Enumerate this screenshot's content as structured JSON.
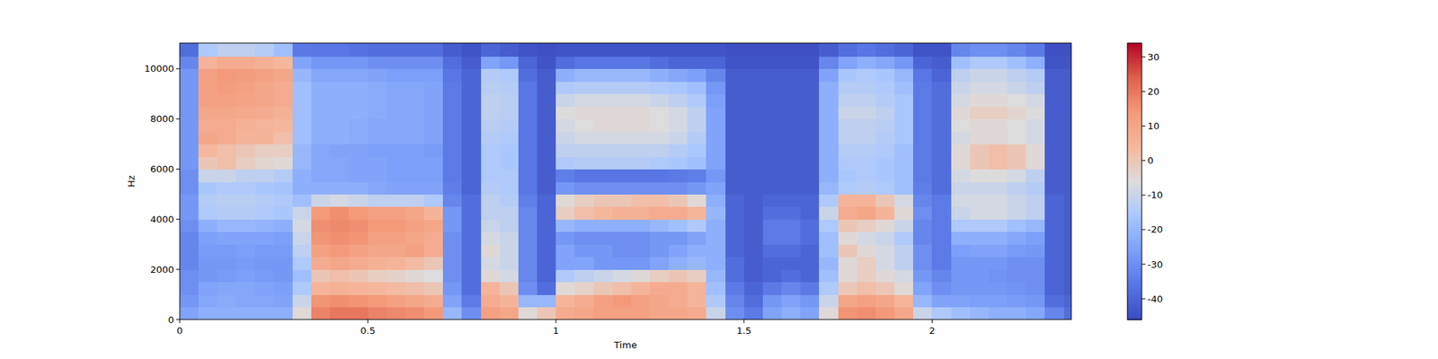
{
  "chart_data": {
    "type": "heatmap",
    "xlabel": "Time",
    "ylabel": "Hz",
    "x_bins": [
      0,
      0.05,
      0.1,
      0.15,
      0.2,
      0.25,
      0.3,
      0.35,
      0.4,
      0.45,
      0.5,
      0.55,
      0.6,
      0.65,
      0.7,
      0.75,
      0.8,
      0.85,
      0.9,
      0.95,
      1,
      1.05,
      1.1,
      1.15,
      1.2,
      1.25,
      1.3,
      1.35,
      1.4,
      1.45,
      1.5,
      1.55,
      1.6,
      1.65,
      1.7,
      1.75,
      1.8,
      1.85,
      1.9,
      1.95,
      2,
      2.05,
      2.1,
      2.15,
      2.2,
      2.25,
      2.3,
      2.35,
      2.4
    ],
    "y_bins": [
      0,
      500,
      1000,
      1500,
      2000,
      2500,
      3000,
      3500,
      4000,
      4500,
      5000,
      5500,
      6000,
      6500,
      7000,
      7500,
      8000,
      8500,
      9000,
      9500,
      10000,
      10500,
      11025
    ],
    "values": [
      [
        -25,
        -22,
        -22,
        -22,
        -22,
        -22,
        -5,
        18,
        20,
        20,
        18,
        17,
        16,
        14,
        -20,
        -30,
        12,
        10,
        -5,
        0,
        8,
        10,
        12,
        12,
        12,
        10,
        10,
        8,
        -10,
        -30,
        -35,
        -25,
        -22,
        -25,
        -5,
        15,
        16,
        14,
        10,
        -10,
        -15,
        -18,
        -20,
        -22,
        -22,
        -24,
        -32,
        -38
      ],
      [
        -28,
        -24,
        -23,
        -24,
        -24,
        -25,
        -10,
        15,
        16,
        15,
        14,
        12,
        10,
        8,
        -25,
        -35,
        8,
        5,
        -20,
        -20,
        5,
        8,
        12,
        14,
        12,
        10,
        8,
        5,
        -15,
        -32,
        -38,
        -28,
        -25,
        -28,
        -10,
        10,
        12,
        10,
        5,
        -20,
        -25,
        -25,
        -26,
        -26,
        -27,
        -28,
        -38,
        -40
      ],
      [
        -30,
        -25,
        -24,
        -24,
        -25,
        -26,
        -15,
        5,
        6,
        5,
        4,
        3,
        2,
        0,
        -28,
        -38,
        5,
        0,
        -30,
        -38,
        -5,
        -3,
        0,
        2,
        5,
        8,
        8,
        5,
        -18,
        -35,
        -40,
        -35,
        -32,
        -35,
        -15,
        0,
        2,
        0,
        -5,
        -25,
        -30,
        -28,
        -28,
        -28,
        -29,
        -30,
        -40,
        -42
      ],
      [
        -30,
        -28,
        -27,
        -26,
        -27,
        -28,
        -18,
        0,
        2,
        0,
        -2,
        -3,
        -5,
        -6,
        -30,
        -38,
        -5,
        -8,
        -32,
        -40,
        -15,
        -12,
        -10,
        -8,
        -5,
        -2,
        0,
        -2,
        -20,
        -38,
        -42,
        -40,
        -38,
        -40,
        -18,
        -5,
        -2,
        -5,
        -8,
        -28,
        -32,
        -28,
        -28,
        -29,
        -30,
        -30,
        -40,
        -42
      ],
      [
        -32,
        -28,
        -28,
        -27,
        -28,
        -28,
        -15,
        8,
        10,
        8,
        6,
        5,
        3,
        0,
        -30,
        -38,
        -8,
        -10,
        -32,
        -40,
        -25,
        -25,
        -28,
        -28,
        -28,
        -25,
        -22,
        -20,
        -22,
        -38,
        -42,
        -40,
        -40,
        -40,
        -20,
        -5,
        -2,
        -8,
        -12,
        -30,
        -35,
        -28,
        -28,
        -28,
        -30,
        -30,
        -40,
        -42
      ],
      [
        -32,
        -27,
        -27,
        -26,
        -27,
        -27,
        -12,
        12,
        14,
        12,
        10,
        10,
        12,
        8,
        -30,
        -38,
        -5,
        -10,
        -32,
        -40,
        -25,
        -28,
        -28,
        -30,
        -30,
        -28,
        -25,
        -22,
        -22,
        -40,
        -42,
        -38,
        -38,
        -40,
        -18,
        0,
        -5,
        -8,
        -12,
        -30,
        -35,
        -26,
        -25,
        -25,
        -27,
        -28,
        -40,
        -42
      ],
      [
        -32,
        -26,
        -25,
        -25,
        -25,
        -26,
        -10,
        15,
        16,
        15,
        12,
        12,
        10,
        8,
        -30,
        -38,
        -8,
        -10,
        -32,
        -40,
        -28,
        -30,
        -30,
        -30,
        -30,
        -28,
        -28,
        -25,
        -22,
        -40,
        -42,
        -35,
        -35,
        -38,
        -18,
        -5,
        -8,
        -10,
        -15,
        -32,
        -35,
        -22,
        -22,
        -22,
        -24,
        -26,
        -40,
        -42
      ],
      [
        -30,
        -22,
        -20,
        -20,
        -21,
        -22,
        -8,
        16,
        17,
        16,
        14,
        14,
        12,
        10,
        -28,
        -38,
        -10,
        -12,
        -32,
        -40,
        -20,
        -22,
        -22,
        -22,
        -22,
        -20,
        -18,
        -15,
        -22,
        -40,
        -42,
        -35,
        -35,
        -38,
        -15,
        0,
        -2,
        -5,
        -10,
        -32,
        -35,
        -15,
        -15,
        -15,
        -18,
        -20,
        -40,
        -42
      ],
      [
        -28,
        -15,
        -14,
        -14,
        -15,
        -16,
        -10,
        14,
        16,
        14,
        12,
        12,
        10,
        5,
        -28,
        -38,
        -12,
        -12,
        -32,
        -40,
        -2,
        2,
        4,
        6,
        6,
        8,
        8,
        5,
        -20,
        -40,
        -42,
        -38,
        -38,
        -40,
        -10,
        8,
        10,
        5,
        -5,
        -30,
        -35,
        -10,
        -8,
        -8,
        -10,
        -12,
        -40,
        -42
      ],
      [
        -28,
        -14,
        -13,
        -13,
        -14,
        -15,
        -18,
        -10,
        -8,
        -10,
        -12,
        -12,
        -12,
        -15,
        -32,
        -38,
        -12,
        -14,
        -34,
        -40,
        -5,
        -2,
        0,
        0,
        2,
        2,
        0,
        -5,
        -22,
        -40,
        -42,
        -40,
        -40,
        -40,
        -15,
        5,
        5,
        0,
        -8,
        -32,
        -35,
        -8,
        -8,
        -8,
        -10,
        -12,
        -40,
        -42
      ],
      [
        -30,
        -16,
        -15,
        -15,
        -16,
        -17,
        -22,
        -22,
        -22,
        -22,
        -24,
        -25,
        -25,
        -25,
        -34,
        -40,
        -14,
        -15,
        -36,
        -42,
        -28,
        -30,
        -30,
        -30,
        -30,
        -30,
        -30,
        -28,
        -25,
        -42,
        -42,
        -42,
        -42,
        -42,
        -20,
        -15,
        -14,
        -15,
        -18,
        -34,
        -38,
        -10,
        -10,
        -10,
        -12,
        -14,
        -42,
        -42
      ],
      [
        -30,
        -10,
        -10,
        -12,
        -12,
        -14,
        -22,
        -24,
        -24,
        -25,
        -25,
        -26,
        -26,
        -26,
        -35,
        -40,
        -15,
        -15,
        -36,
        -42,
        -34,
        -36,
        -36,
        -36,
        -36,
        -36,
        -35,
        -34,
        -28,
        -42,
        -42,
        -42,
        -42,
        -42,
        -22,
        -16,
        -15,
        -16,
        -18,
        -35,
        -38,
        -8,
        -6,
        -6,
        -8,
        -12,
        -42,
        -42
      ],
      [
        -28,
        0,
        2,
        -2,
        -4,
        -5,
        -20,
        -24,
        -24,
        -25,
        -25,
        -26,
        -26,
        -26,
        -35,
        -40,
        -15,
        -16,
        -36,
        -42,
        -15,
        -14,
        -14,
        -14,
        -14,
        -15,
        -16,
        -18,
        -25,
        -42,
        -42,
        -42,
        -42,
        -42,
        -22,
        -15,
        -15,
        -16,
        -18,
        -35,
        -38,
        -5,
        0,
        2,
        0,
        -5,
        -42,
        -42
      ],
      [
        -28,
        4,
        2,
        0,
        -2,
        -2,
        -20,
        -24,
        -25,
        -25,
        -26,
        -26,
        -26,
        -27,
        -35,
        -40,
        -15,
        -16,
        -36,
        -42,
        -12,
        -12,
        -12,
        -12,
        -12,
        -12,
        -14,
        -16,
        -25,
        -42,
        -42,
        -42,
        -42,
        -42,
        -22,
        -14,
        -14,
        -15,
        -18,
        -35,
        -38,
        -5,
        0,
        2,
        0,
        -5,
        -42,
        -42
      ],
      [
        -28,
        10,
        8,
        5,
        5,
        2,
        -18,
        -22,
        -22,
        -23,
        -24,
        -24,
        -24,
        -25,
        -35,
        -40,
        -14,
        -15,
        -36,
        -42,
        -10,
        -8,
        -8,
        -8,
        -8,
        -8,
        -10,
        -14,
        -25,
        -42,
        -42,
        -42,
        -42,
        -42,
        -22,
        -12,
        -12,
        -14,
        -16,
        -35,
        -38,
        -8,
        -5,
        -5,
        -6,
        -8,
        -42,
        -42
      ],
      [
        -28,
        8,
        8,
        6,
        5,
        4,
        -18,
        -22,
        -22,
        -23,
        -24,
        -24,
        -24,
        -25,
        -35,
        -40,
        -13,
        -14,
        -36,
        -42,
        -8,
        -6,
        -5,
        -5,
        -5,
        -6,
        -8,
        -12,
        -25,
        -42,
        -42,
        -42,
        -42,
        -42,
        -22,
        -12,
        -12,
        -13,
        -16,
        -35,
        -38,
        -6,
        -5,
        -5,
        -6,
        -8,
        -42,
        -42
      ],
      [
        -28,
        10,
        10,
        9,
        8,
        6,
        -18,
        -22,
        -22,
        -22,
        -23,
        -24,
        -24,
        -25,
        -35,
        -40,
        -12,
        -13,
        -36,
        -42,
        -6,
        -5,
        -5,
        -5,
        -5,
        -6,
        -8,
        -12,
        -25,
        -42,
        -42,
        -42,
        -42,
        -42,
        -22,
        -10,
        -10,
        -12,
        -16,
        -35,
        -38,
        -5,
        -2,
        -2,
        -4,
        -6,
        -42,
        -42
      ],
      [
        -28,
        12,
        12,
        11,
        10,
        8,
        -18,
        -22,
        -22,
        -22,
        -23,
        -24,
        -24,
        -25,
        -35,
        -40,
        -12,
        -13,
        -36,
        -42,
        -10,
        -8,
        -8,
        -8,
        -8,
        -10,
        -12,
        -15,
        -26,
        -42,
        -42,
        -42,
        -42,
        -42,
        -22,
        -12,
        -12,
        -14,
        -16,
        -35,
        -38,
        -8,
        -5,
        -5,
        -6,
        -8,
        -42,
        -42
      ],
      [
        -28,
        12,
        13,
        12,
        10,
        8,
        -18,
        -22,
        -22,
        -22,
        -23,
        -24,
        -24,
        -25,
        -35,
        -40,
        -13,
        -14,
        -36,
        -42,
        -15,
        -14,
        -14,
        -14,
        -14,
        -15,
        -16,
        -18,
        -28,
        -42,
        -42,
        -42,
        -42,
        -42,
        -22,
        -14,
        -14,
        -15,
        -18,
        -35,
        -38,
        -10,
        -8,
        -8,
        -10,
        -12,
        -42,
        -42
      ],
      [
        -28,
        12,
        14,
        13,
        12,
        10,
        -20,
        -24,
        -24,
        -24,
        -25,
        -26,
        -26,
        -26,
        -36,
        -40,
        -14,
        -15,
        -38,
        -42,
        -22,
        -20,
        -20,
        -20,
        -20,
        -22,
        -24,
        -26,
        -32,
        -42,
        -42,
        -42,
        -42,
        -42,
        -25,
        -16,
        -15,
        -16,
        -20,
        -36,
        -40,
        -12,
        -10,
        -10,
        -12,
        -14,
        -42,
        -42
      ],
      [
        -32,
        5,
        8,
        8,
        6,
        4,
        -25,
        -28,
        -28,
        -28,
        -30,
        -30,
        -30,
        -30,
        -38,
        -42,
        -25,
        -28,
        -40,
        -44,
        -38,
        -36,
        -36,
        -36,
        -36,
        -38,
        -40,
        -40,
        -40,
        -44,
        -44,
        -44,
        -44,
        -44,
        -32,
        -25,
        -22,
        -24,
        -28,
        -40,
        -42,
        -18,
        -15,
        -15,
        -18,
        -22,
        -44,
        -44
      ],
      [
        -38,
        -15,
        -12,
        -12,
        -14,
        -18,
        -35,
        -36,
        -36,
        -37,
        -38,
        -38,
        -38,
        -38,
        -42,
        -44,
        -40,
        -42,
        -44,
        -45,
        -44,
        -44,
        -44,
        -44,
        -44,
        -44,
        -44,
        -44,
        -44,
        -45,
        -45,
        -45,
        -45,
        -45,
        -42,
        -38,
        -36,
        -38,
        -40,
        -44,
        -44,
        -32,
        -30,
        -30,
        -32,
        -35,
        -45,
        -45
      ]
    ],
    "xlim": [
      0,
      2.37
    ],
    "ylim": [
      0,
      11025
    ],
    "xticks": [
      0,
      0.5,
      1,
      1.5,
      2
    ],
    "yticks": [
      0,
      2000,
      4000,
      6000,
      8000,
      10000
    ],
    "colorbar": {
      "range": [
        -46,
        34
      ],
      "ticks": [
        -40,
        -30,
        -20,
        -10,
        0,
        10,
        20,
        30
      ]
    }
  }
}
